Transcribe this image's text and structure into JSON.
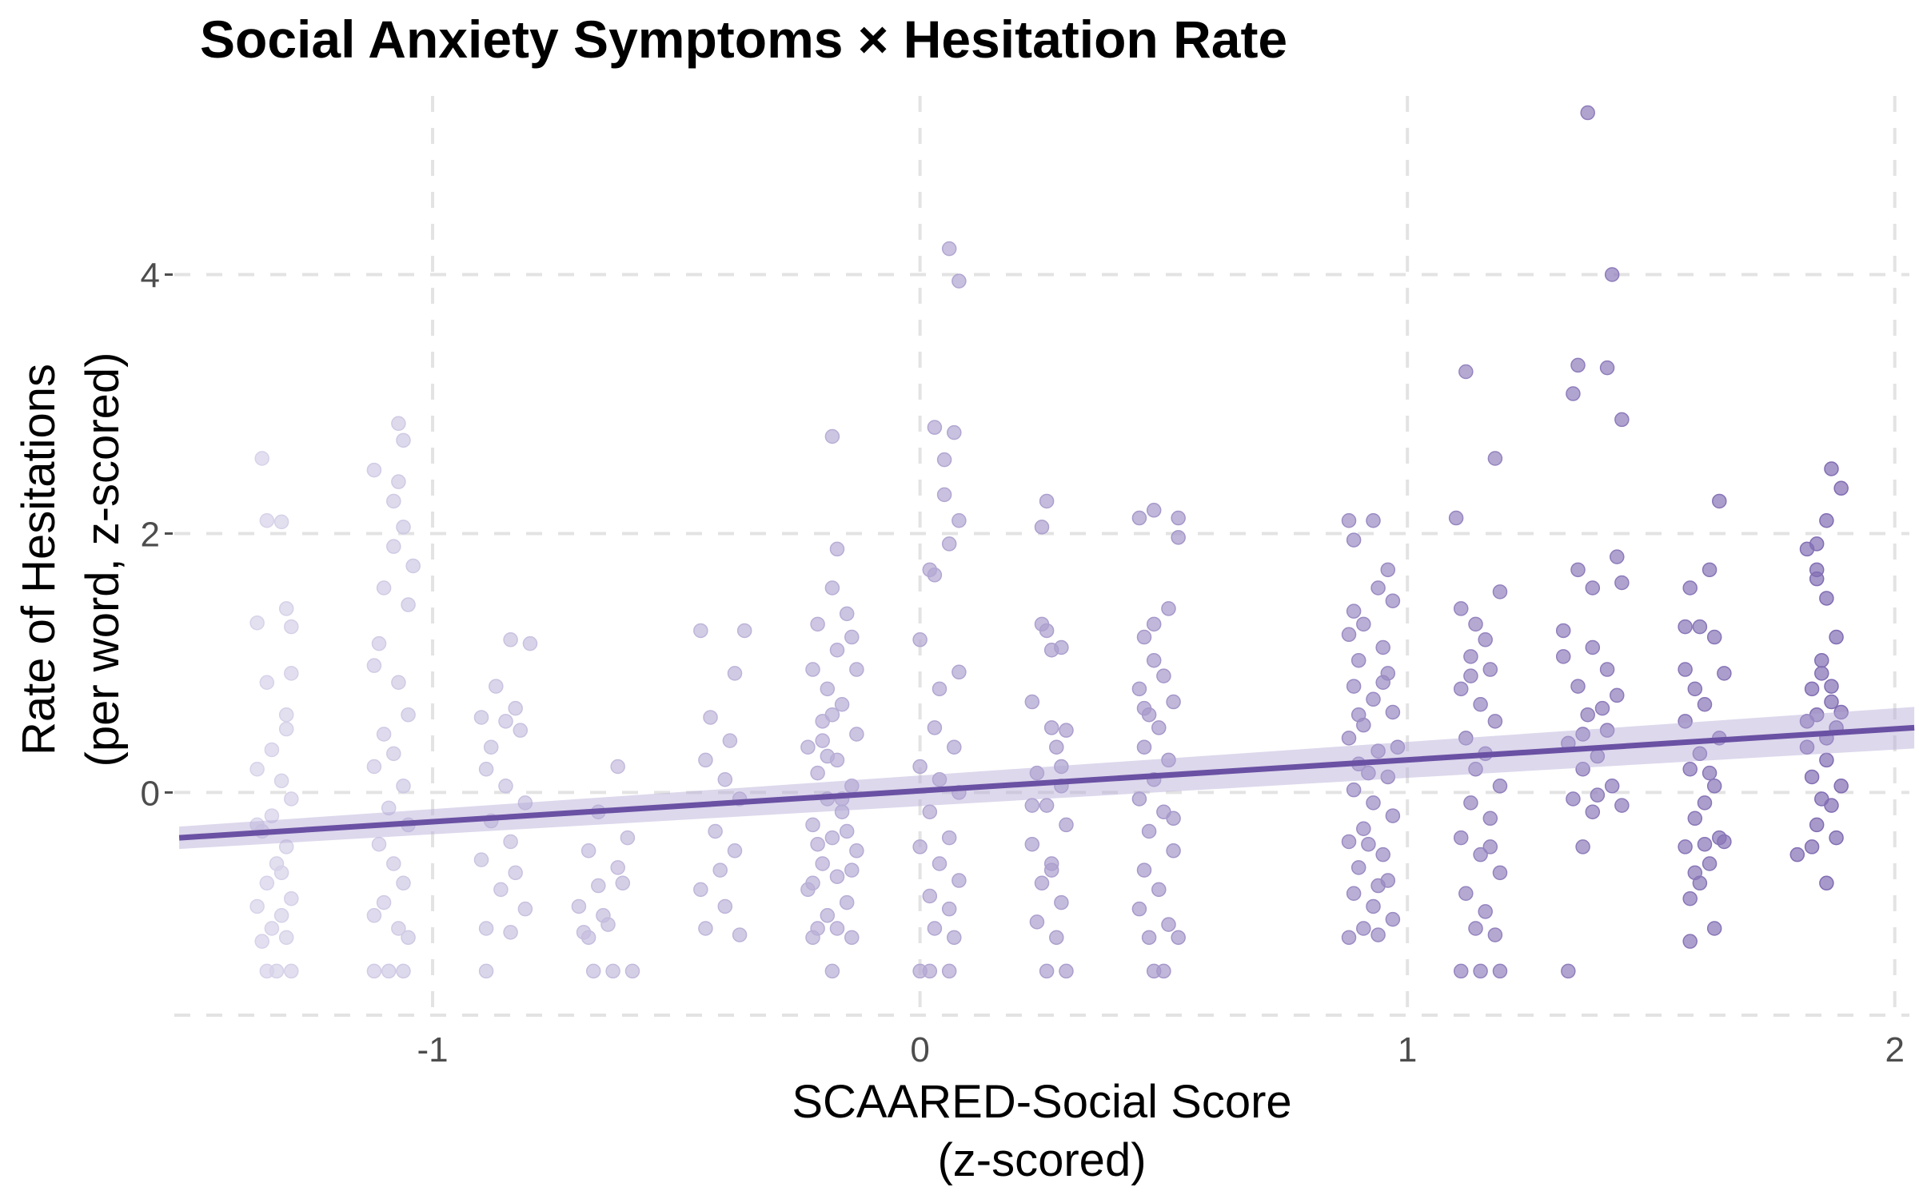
{
  "chart_data": {
    "type": "scatter",
    "title": "Social Anxiety Symptoms × Hesitation Rate",
    "xlabel": [
      "SCAARED-Social Score",
      "(z-scored)"
    ],
    "ylabel": [
      "Rate of Hesitations",
      "(per word, z-scored)"
    ],
    "xlim": [
      -1.53,
      2.03
    ],
    "ylim": [
      -1.72,
      5.38
    ],
    "x_ticks": [
      -1,
      0,
      1,
      2
    ],
    "x_tick_labels": [
      "-1",
      "0",
      "1",
      "2"
    ],
    "y_ticks": [
      0,
      2,
      4
    ],
    "y_tick_labels": [
      "0",
      "2",
      "4"
    ],
    "grid": true,
    "gradient_colors": [
      "#dcd8ec",
      "#7d68b0"
    ],
    "trend_color": "#6a51a3",
    "band_color": "#b3a9d4",
    "trend_line": {
      "x": [
        -1.52,
        2.04
      ],
      "y": [
        -0.35,
        0.5
      ]
    },
    "points": [
      [
        -1.35,
        2.58
      ],
      [
        -1.34,
        2.1
      ],
      [
        -1.31,
        2.09
      ],
      [
        -1.3,
        1.42
      ],
      [
        -1.36,
        1.31
      ],
      [
        -1.29,
        1.28
      ],
      [
        -1.29,
        0.92
      ],
      [
        -1.34,
        0.85
      ],
      [
        -1.3,
        0.49
      ],
      [
        -1.33,
        0.33
      ],
      [
        -1.36,
        0.18
      ],
      [
        -1.31,
        0.09
      ],
      [
        -1.29,
        -0.05
      ],
      [
        -1.33,
        -0.18
      ],
      [
        -1.35,
        -0.3
      ],
      [
        -1.3,
        -0.42
      ],
      [
        -1.32,
        -0.55
      ],
      [
        -1.34,
        -0.7
      ],
      [
        -1.29,
        -0.82
      ],
      [
        -1.36,
        -0.88
      ],
      [
        -1.31,
        -0.95
      ],
      [
        -1.33,
        -1.05
      ],
      [
        -1.3,
        -1.12
      ],
      [
        -1.35,
        -1.15
      ],
      [
        -1.32,
        -1.38
      ],
      [
        -1.29,
        -1.38
      ],
      [
        -1.34,
        -1.38
      ],
      [
        -1.31,
        -0.62
      ],
      [
        -1.36,
        -0.25
      ],
      [
        -1.3,
        0.6
      ],
      [
        -1.12,
        2.49
      ],
      [
        -1.07,
        2.85
      ],
      [
        -1.06,
        2.72
      ],
      [
        -1.07,
        2.4
      ],
      [
        -1.08,
        2.25
      ],
      [
        -1.06,
        2.05
      ],
      [
        -1.1,
        1.58
      ],
      [
        -1.05,
        1.45
      ],
      [
        -1.11,
        1.15
      ],
      [
        -1.12,
        0.98
      ],
      [
        -1.07,
        0.85
      ],
      [
        -1.05,
        0.6
      ],
      [
        -1.1,
        0.45
      ],
      [
        -1.08,
        0.3
      ],
      [
        -1.12,
        0.2
      ],
      [
        -1.06,
        0.05
      ],
      [
        -1.09,
        -0.12
      ],
      [
        -1.05,
        -0.25
      ],
      [
        -1.11,
        -0.4
      ],
      [
        -1.08,
        -0.55
      ],
      [
        -1.06,
        -0.7
      ],
      [
        -1.1,
        -0.85
      ],
      [
        -1.12,
        -0.95
      ],
      [
        -1.07,
        -1.05
      ],
      [
        -1.05,
        -1.12
      ],
      [
        -1.09,
        -1.38
      ],
      [
        -1.06,
        -1.38
      ],
      [
        -1.12,
        -1.38
      ],
      [
        -1.04,
        1.75
      ],
      [
        -1.08,
        1.9
      ],
      [
        -0.9,
        0.58
      ],
      [
        -0.85,
        0.55
      ],
      [
        -0.82,
        0.48
      ],
      [
        -0.88,
        0.35
      ],
      [
        -0.84,
        1.18
      ],
      [
        -0.8,
        1.15
      ],
      [
        -0.87,
        0.82
      ],
      [
        -0.83,
        0.65
      ],
      [
        -0.89,
        0.18
      ],
      [
        -0.85,
        0.05
      ],
      [
        -0.81,
        -0.08
      ],
      [
        -0.88,
        -0.22
      ],
      [
        -0.84,
        -0.38
      ],
      [
        -0.9,
        -0.52
      ],
      [
        -0.83,
        -0.62
      ],
      [
        -0.86,
        -0.75
      ],
      [
        -0.81,
        -0.9
      ],
      [
        -0.89,
        -1.05
      ],
      [
        -0.84,
        -1.08
      ],
      [
        -0.89,
        -1.38
      ],
      [
        -0.68,
        -0.45
      ],
      [
        -0.62,
        -0.58
      ],
      [
        -0.66,
        -0.72
      ],
      [
        -0.7,
        -0.88
      ],
      [
        -0.64,
        -1.02
      ],
      [
        -0.68,
        -1.12
      ],
      [
        -0.6,
        -0.35
      ],
      [
        -0.62,
        0.2
      ],
      [
        -0.66,
        -0.15
      ],
      [
        -0.67,
        -1.38
      ],
      [
        -0.63,
        -1.38
      ],
      [
        -0.59,
        -1.38
      ],
      [
        -0.69,
        -1.08
      ],
      [
        -0.65,
        -0.95
      ],
      [
        -0.61,
        -0.7
      ],
      [
        -0.45,
        1.25
      ],
      [
        -0.36,
        1.25
      ],
      [
        -0.38,
        0.92
      ],
      [
        -0.43,
        0.58
      ],
      [
        -0.44,
        0.25
      ],
      [
        -0.4,
        0.1
      ],
      [
        -0.37,
        -0.05
      ],
      [
        -0.42,
        -0.3
      ],
      [
        -0.38,
        -0.45
      ],
      [
        -0.45,
        -0.75
      ],
      [
        -0.4,
        -0.88
      ],
      [
        -0.44,
        -1.05
      ],
      [
        -0.37,
        -1.1
      ],
      [
        -0.41,
        -0.6
      ],
      [
        -0.39,
        0.4
      ],
      [
        -0.18,
        2.75
      ],
      [
        -0.17,
        1.88
      ],
      [
        -0.18,
        1.58
      ],
      [
        -0.15,
        1.38
      ],
      [
        -0.21,
        1.3
      ],
      [
        -0.14,
        1.2
      ],
      [
        -0.17,
        1.1
      ],
      [
        -0.22,
        0.95
      ],
      [
        -0.19,
        0.8
      ],
      [
        -0.16,
        0.68
      ],
      [
        -0.2,
        0.55
      ],
      [
        -0.13,
        0.45
      ],
      [
        -0.23,
        0.35
      ],
      [
        -0.17,
        0.25
      ],
      [
        -0.21,
        0.15
      ],
      [
        -0.14,
        0.05
      ],
      [
        -0.19,
        -0.05
      ],
      [
        -0.16,
        -0.15
      ],
      [
        -0.22,
        -0.25
      ],
      [
        -0.18,
        -0.35
      ],
      [
        -0.13,
        -0.45
      ],
      [
        -0.2,
        -0.55
      ],
      [
        -0.17,
        -0.65
      ],
      [
        -0.23,
        -0.75
      ],
      [
        -0.15,
        -0.85
      ],
      [
        -0.19,
        -0.95
      ],
      [
        -0.21,
        -1.05
      ],
      [
        -0.14,
        -1.12
      ],
      [
        -0.18,
        -1.38
      ],
      [
        -0.22,
        -1.12
      ],
      [
        -0.16,
        -0.05
      ],
      [
        -0.2,
        0.4
      ],
      [
        -0.13,
        0.95
      ],
      [
        -0.18,
        0.6
      ],
      [
        -0.15,
        -0.3
      ],
      [
        -0.22,
        -0.7
      ],
      [
        -0.17,
        -1.05
      ],
      [
        -0.19,
        0.28
      ],
      [
        -0.14,
        -0.6
      ],
      [
        -0.21,
        -0.4
      ],
      [
        0.06,
        4.2
      ],
      [
        0.08,
        3.95
      ],
      [
        0.03,
        2.82
      ],
      [
        0.07,
        2.78
      ],
      [
        0.05,
        2.57
      ],
      [
        0.05,
        2.3
      ],
      [
        0.08,
        2.1
      ],
      [
        0.06,
        1.92
      ],
      [
        0.02,
        1.72
      ],
      [
        0.03,
        1.68
      ],
      [
        0.0,
        1.18
      ],
      [
        0.08,
        0.93
      ],
      [
        0.03,
        0.5
      ],
      [
        0.07,
        0.35
      ],
      [
        0.0,
        0.2
      ],
      [
        0.04,
        0.1
      ],
      [
        0.08,
        0.0
      ],
      [
        0.02,
        -0.15
      ],
      [
        0.06,
        -0.35
      ],
      [
        0.0,
        -0.42
      ],
      [
        0.04,
        -0.55
      ],
      [
        0.08,
        -0.68
      ],
      [
        0.02,
        -0.8
      ],
      [
        0.06,
        -0.9
      ],
      [
        0.03,
        -1.05
      ],
      [
        0.07,
        -1.12
      ],
      [
        0.0,
        -1.38
      ],
      [
        0.02,
        -1.38
      ],
      [
        0.06,
        -1.38
      ],
      [
        0.04,
        0.8
      ],
      [
        0.23,
        0.7
      ],
      [
        0.25,
        1.3
      ],
      [
        0.26,
        1.25
      ],
      [
        0.27,
        1.1
      ],
      [
        0.29,
        1.12
      ],
      [
        0.26,
        2.25
      ],
      [
        0.25,
        2.05
      ],
      [
        0.27,
        0.5
      ],
      [
        0.3,
        0.48
      ],
      [
        0.28,
        0.35
      ],
      [
        0.24,
        0.15
      ],
      [
        0.29,
        0.05
      ],
      [
        0.26,
        -0.1
      ],
      [
        0.3,
        -0.25
      ],
      [
        0.23,
        -0.4
      ],
      [
        0.27,
        -0.55
      ],
      [
        0.25,
        -0.7
      ],
      [
        0.29,
        -0.85
      ],
      [
        0.24,
        -1.0
      ],
      [
        0.28,
        -1.12
      ],
      [
        0.26,
        -1.38
      ],
      [
        0.3,
        -1.38
      ],
      [
        0.23,
        -0.1
      ],
      [
        0.27,
        -0.6
      ],
      [
        0.29,
        0.2
      ],
      [
        0.45,
        2.12
      ],
      [
        0.48,
        2.18
      ],
      [
        0.53,
        2.12
      ],
      [
        0.53,
        1.97
      ],
      [
        0.51,
        1.42
      ],
      [
        0.48,
        1.3
      ],
      [
        0.46,
        1.2
      ],
      [
        0.48,
        1.02
      ],
      [
        0.5,
        0.9
      ],
      [
        0.45,
        0.8
      ],
      [
        0.52,
        0.7
      ],
      [
        0.47,
        0.6
      ],
      [
        0.49,
        0.5
      ],
      [
        0.46,
        0.35
      ],
      [
        0.51,
        0.25
      ],
      [
        0.48,
        0.1
      ],
      [
        0.45,
        -0.05
      ],
      [
        0.5,
        -0.15
      ],
      [
        0.47,
        -0.3
      ],
      [
        0.52,
        -0.45
      ],
      [
        0.46,
        -0.6
      ],
      [
        0.49,
        -0.75
      ],
      [
        0.45,
        -0.9
      ],
      [
        0.51,
        -1.02
      ],
      [
        0.47,
        -1.12
      ],
      [
        0.53,
        -1.12
      ],
      [
        0.48,
        -1.38
      ],
      [
        0.5,
        -1.38
      ],
      [
        0.46,
        0.65
      ],
      [
        0.52,
        -0.2
      ],
      [
        0.88,
        2.1
      ],
      [
        0.93,
        2.1
      ],
      [
        0.89,
        1.95
      ],
      [
        0.96,
        1.72
      ],
      [
        0.94,
        1.58
      ],
      [
        0.97,
        1.48
      ],
      [
        0.91,
        1.3
      ],
      [
        0.88,
        1.22
      ],
      [
        0.95,
        1.12
      ],
      [
        0.9,
        1.02
      ],
      [
        0.96,
        0.92
      ],
      [
        0.89,
        0.82
      ],
      [
        0.93,
        0.72
      ],
      [
        0.97,
        0.62
      ],
      [
        0.91,
        0.52
      ],
      [
        0.88,
        0.42
      ],
      [
        0.94,
        0.32
      ],
      [
        0.9,
        0.22
      ],
      [
        0.96,
        0.12
      ],
      [
        0.89,
        0.02
      ],
      [
        0.93,
        -0.08
      ],
      [
        0.97,
        -0.18
      ],
      [
        0.91,
        -0.28
      ],
      [
        0.88,
        -0.38
      ],
      [
        0.95,
        -0.48
      ],
      [
        0.9,
        -0.58
      ],
      [
        0.96,
        -0.68
      ],
      [
        0.89,
        -0.78
      ],
      [
        0.93,
        -0.88
      ],
      [
        0.97,
        -0.98
      ],
      [
        0.91,
        -1.05
      ],
      [
        0.88,
        -1.12
      ],
      [
        0.94,
        -1.1
      ],
      [
        0.9,
        0.6
      ],
      [
        0.95,
        0.85
      ],
      [
        0.92,
        -0.4
      ],
      [
        0.98,
        0.35
      ],
      [
        0.89,
        1.4
      ],
      [
        0.94,
        -0.72
      ],
      [
        0.92,
        0.15
      ],
      [
        1.12,
        3.25
      ],
      [
        1.18,
        2.58
      ],
      [
        1.1,
        2.12
      ],
      [
        1.19,
        1.55
      ],
      [
        1.11,
        1.42
      ],
      [
        1.14,
        1.3
      ],
      [
        1.16,
        1.18
      ],
      [
        1.13,
        1.05
      ],
      [
        1.17,
        0.95
      ],
      [
        1.11,
        0.8
      ],
      [
        1.15,
        0.68
      ],
      [
        1.18,
        0.55
      ],
      [
        1.12,
        0.42
      ],
      [
        1.16,
        0.3
      ],
      [
        1.14,
        0.18
      ],
      [
        1.19,
        0.05
      ],
      [
        1.13,
        -0.08
      ],
      [
        1.17,
        -0.2
      ],
      [
        1.11,
        -0.35
      ],
      [
        1.15,
        -0.48
      ],
      [
        1.19,
        -0.62
      ],
      [
        1.12,
        -0.78
      ],
      [
        1.16,
        -0.92
      ],
      [
        1.14,
        -1.05
      ],
      [
        1.18,
        -1.1
      ],
      [
        1.15,
        -1.38
      ],
      [
        1.11,
        -1.38
      ],
      [
        1.19,
        -1.38
      ],
      [
        1.13,
        0.9
      ],
      [
        1.17,
        -0.42
      ],
      [
        1.32,
        1.05
      ],
      [
        1.35,
        1.72
      ],
      [
        1.38,
        1.58
      ],
      [
        1.43,
        1.82
      ],
      [
        1.44,
        1.62
      ],
      [
        1.32,
        1.25
      ],
      [
        1.38,
        1.12
      ],
      [
        1.41,
        0.95
      ],
      [
        1.35,
        0.82
      ],
      [
        1.43,
        0.75
      ],
      [
        1.37,
        0.6
      ],
      [
        1.41,
        0.48
      ],
      [
        1.33,
        0.38
      ],
      [
        1.39,
        0.28
      ],
      [
        1.36,
        0.18
      ],
      [
        1.42,
        0.05
      ],
      [
        1.34,
        -0.05
      ],
      [
        1.38,
        -0.15
      ],
      [
        1.44,
        -0.1
      ],
      [
        1.36,
        -0.42
      ],
      [
        1.33,
        -1.38
      ],
      [
        1.37,
        5.25
      ],
      [
        1.42,
        4.0
      ],
      [
        1.35,
        3.3
      ],
      [
        1.34,
        3.08
      ],
      [
        1.41,
        3.28
      ],
      [
        1.44,
        2.88
      ],
      [
        1.4,
        0.65
      ],
      [
        1.36,
        0.45
      ],
      [
        1.39,
        -0.02
      ],
      [
        1.58,
        1.58
      ],
      [
        1.62,
        1.72
      ],
      [
        1.6,
        1.28
      ],
      [
        1.57,
        1.28
      ],
      [
        1.63,
        1.2
      ],
      [
        1.65,
        0.92
      ],
      [
        1.59,
        0.8
      ],
      [
        1.61,
        0.68
      ],
      [
        1.57,
        0.55
      ],
      [
        1.64,
        0.42
      ],
      [
        1.6,
        0.3
      ],
      [
        1.58,
        0.18
      ],
      [
        1.63,
        0.05
      ],
      [
        1.61,
        -0.08
      ],
      [
        1.59,
        -0.2
      ],
      [
        1.64,
        -0.35
      ],
      [
        1.57,
        -0.42
      ],
      [
        1.62,
        -0.55
      ],
      [
        1.6,
        -0.7
      ],
      [
        1.58,
        -0.82
      ],
      [
        1.63,
        -1.05
      ],
      [
        1.58,
        -1.15
      ],
      [
        1.64,
        2.25
      ],
      [
        1.61,
        -0.4
      ],
      [
        1.65,
        -0.38
      ],
      [
        1.57,
        0.95
      ],
      [
        1.62,
        0.15
      ],
      [
        1.59,
        -0.62
      ],
      [
        1.82,
        1.88
      ],
      [
        1.84,
        1.92
      ],
      [
        1.86,
        2.1
      ],
      [
        1.87,
        2.5
      ],
      [
        1.89,
        2.35
      ],
      [
        1.84,
        1.65
      ],
      [
        1.86,
        1.5
      ],
      [
        1.88,
        1.2
      ],
      [
        1.85,
        0.92
      ],
      [
        1.83,
        0.8
      ],
      [
        1.87,
        0.7
      ],
      [
        1.84,
        0.6
      ],
      [
        1.88,
        0.5
      ],
      [
        1.82,
        0.35
      ],
      [
        1.86,
        0.25
      ],
      [
        1.83,
        0.12
      ],
      [
        1.89,
        0.05
      ],
      [
        1.85,
        -0.05
      ],
      [
        1.87,
        -0.1
      ],
      [
        1.84,
        -0.25
      ],
      [
        1.88,
        -0.35
      ],
      [
        1.83,
        -0.42
      ],
      [
        1.86,
        -0.7
      ],
      [
        1.8,
        -0.48
      ],
      [
        1.85,
        1.02
      ],
      [
        1.87,
        0.82
      ],
      [
        1.82,
        0.55
      ],
      [
        1.89,
        0.62
      ],
      [
        1.84,
        1.72
      ],
      [
        1.86,
        0.42
      ]
    ]
  }
}
